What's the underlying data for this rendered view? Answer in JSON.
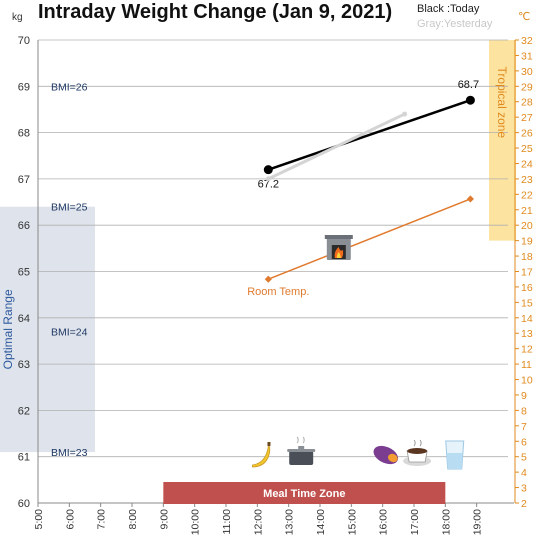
{
  "header": {
    "title": "Intraday Weight Change (Jan 9, 2021)",
    "legend_today": "Black :Today",
    "legend_yesterday": "Gray:Yesterday",
    "left_unit": "kg",
    "right_unit": "℃"
  },
  "chart_data": {
    "type": "line",
    "title": "Intraday Weight Change (Jan 9, 2021)",
    "x_ticks": [
      "5:00",
      "6:00",
      "7:00",
      "8:00",
      "9:00",
      "10:00",
      "11:00",
      "12:00",
      "13:00",
      "14:00",
      "15:00",
      "16:00",
      "17:00",
      "18:00",
      "19:00"
    ],
    "xlim": [
      5,
      20
    ],
    "y_left": {
      "unit": "kg",
      "ylim": [
        60,
        70
      ],
      "ticks": [
        60,
        61,
        62,
        63,
        64,
        65,
        66,
        67,
        68,
        69,
        70
      ]
    },
    "y_right": {
      "unit": "℃",
      "ylim": [
        2,
        32
      ],
      "ticks": [
        2,
        3,
        4,
        5,
        6,
        7,
        8,
        9,
        10,
        11,
        12,
        13,
        14,
        15,
        16,
        17,
        18,
        19,
        20,
        21,
        22,
        23,
        24,
        25,
        26,
        27,
        28,
        29,
        30,
        31,
        32
      ]
    },
    "grid": true,
    "series": [
      {
        "name": "Today",
        "axis": "left",
        "color": "#000000",
        "x": [
          12.35,
          18.8
        ],
        "y": [
          67.2,
          68.7
        ],
        "labels": [
          "67.2",
          "68.7"
        ]
      },
      {
        "name": "Yesterday",
        "axis": "left",
        "color": "#d4d4d4",
        "x": [
          12.35,
          16.7
        ],
        "y": [
          67.0,
          68.4
        ]
      },
      {
        "name": "Room Temp.",
        "axis": "right",
        "color": "#e07a2e",
        "x": [
          12.35,
          18.8
        ],
        "y": [
          16.5,
          21.7
        ]
      }
    ],
    "bmi_lines": [
      {
        "label": "BMI=26",
        "kg": 69.0
      },
      {
        "label": "BMI=25",
        "kg": 66.4
      },
      {
        "label": "BMI=24",
        "kg": 63.7
      },
      {
        "label": "BMI=23",
        "kg": 61.1
      }
    ],
    "bands": {
      "optimal_range": {
        "label": "Optimal Range",
        "kg": [
          61.1,
          66.4
        ],
        "color": "#dfe4ec"
      },
      "tropical_zone": {
        "label": "Tropical zone",
        "celsius": [
          19,
          32
        ],
        "color": "#fde3a0"
      },
      "meal_time_zone": {
        "label": "Meal Time Zone",
        "x": [
          9.0,
          18.0
        ],
        "color": "#c0504d"
      }
    },
    "icons": [
      {
        "name": "fireplace-icon",
        "x": 14.6
      },
      {
        "name": "banana-icon",
        "x": 12.1
      },
      {
        "name": "cooking-pot-icon",
        "x": 13.4
      },
      {
        "name": "sweet-potato-icon",
        "x": 16.1
      },
      {
        "name": "coffee-cup-icon",
        "x": 17.1
      },
      {
        "name": "water-glass-icon",
        "x": 18.3
      }
    ]
  }
}
